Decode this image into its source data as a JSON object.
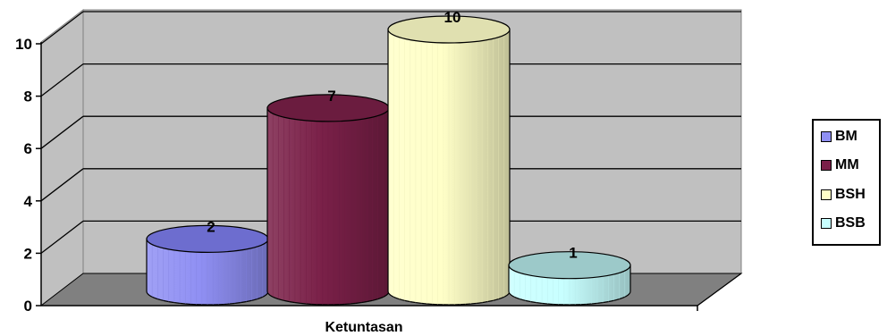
{
  "chart_data": {
    "type": "bar",
    "style": "3d-cylinder",
    "categories": [
      "Ketuntasan"
    ],
    "series": [
      {
        "name": "BM",
        "values": [
          2
        ],
        "color": "#8f8ff3"
      },
      {
        "name": "MM",
        "values": [
          7
        ],
        "color": "#7a2048"
      },
      {
        "name": "BSH",
        "values": [
          10
        ],
        "color": "#ffffc8"
      },
      {
        "name": "BSB",
        "values": [
          1
        ],
        "color": "#c8ffff"
      }
    ],
    "ylim": [
      0,
      10
    ],
    "yticks": [
      "0",
      "2",
      "4",
      "6",
      "8",
      "10"
    ],
    "data_labels": [
      "2",
      "7",
      "10",
      "1"
    ],
    "grid": true,
    "legend": "right"
  },
  "colors": {
    "wall": "#c0c0c0",
    "floor": "#808080",
    "gridline": "#000000"
  }
}
